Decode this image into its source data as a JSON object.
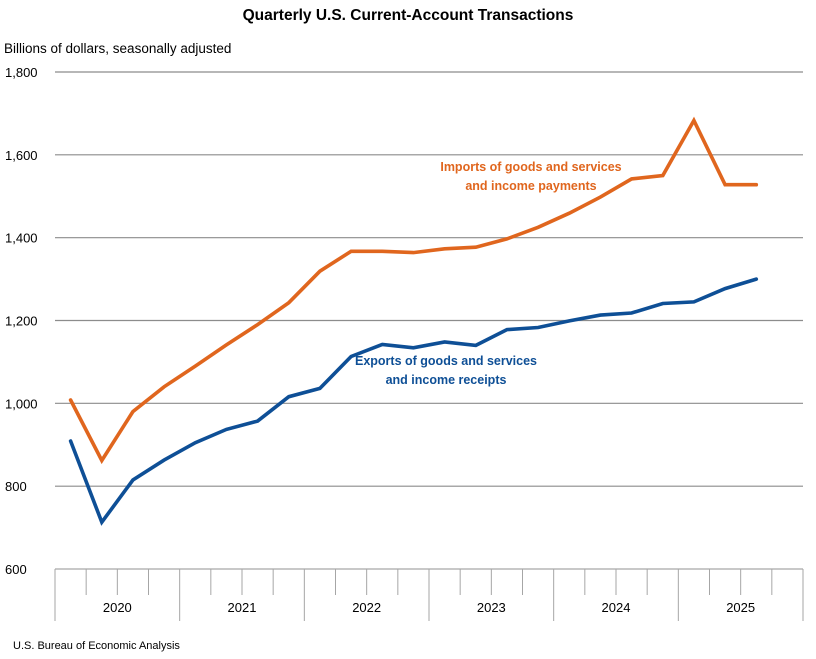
{
  "chart_data": {
    "type": "line",
    "title": "Quarterly U.S. Current-Account Transactions",
    "ylabel": "Billions of dollars, seasonally adjusted",
    "xlabel": "",
    "source": "U.S. Bureau of Economic Analysis",
    "ylim": [
      600,
      1800
    ],
    "yticks": [
      600,
      800,
      1000,
      1200,
      1400,
      1600,
      1800
    ],
    "ytick_labels": [
      "600",
      "800",
      "1,000",
      "1,200",
      "1,400",
      "1,600",
      "1,800"
    ],
    "grid": true,
    "years": [
      "2020",
      "2021",
      "2022",
      "2023",
      "2024",
      "2025"
    ],
    "quarters_per_year": 4,
    "x": [
      "2020Q1",
      "2020Q2",
      "2020Q3",
      "2020Q4",
      "2021Q1",
      "2021Q2",
      "2021Q3",
      "2021Q4",
      "2022Q1",
      "2022Q2",
      "2022Q3",
      "2022Q4",
      "2023Q1",
      "2023Q2",
      "2023Q3",
      "2023Q4",
      "2024Q1",
      "2024Q2",
      "2024Q3",
      "2024Q4",
      "2025Q1",
      "2025Q2",
      "2025Q3"
    ],
    "series": [
      {
        "name": "Imports of goods and services and income payments",
        "label_lines": [
          "Imports of goods and services",
          "and income payments"
        ],
        "color": "#E0661E",
        "values": [
          1008,
          862,
          980,
          1040,
          1090,
          1141,
          1190,
          1243,
          1319,
          1367,
          1367,
          1364,
          1373,
          1377,
          1397,
          1425,
          1459,
          1498,
          1542,
          1550,
          1683,
          1528,
          1528
        ]
      },
      {
        "name": "Exports of goods and services and income receipts",
        "label_lines": [
          "Exports of goods and services",
          "and income receipts"
        ],
        "color": "#0E4F96",
        "values": [
          909,
          713,
          815,
          863,
          905,
          937,
          957,
          1016,
          1036,
          1113,
          1142,
          1134,
          1148,
          1140,
          1178,
          1183,
          1199,
          1213,
          1218,
          1241,
          1245,
          1277,
          1300
        ]
      }
    ],
    "legend": "inline-annotations"
  }
}
